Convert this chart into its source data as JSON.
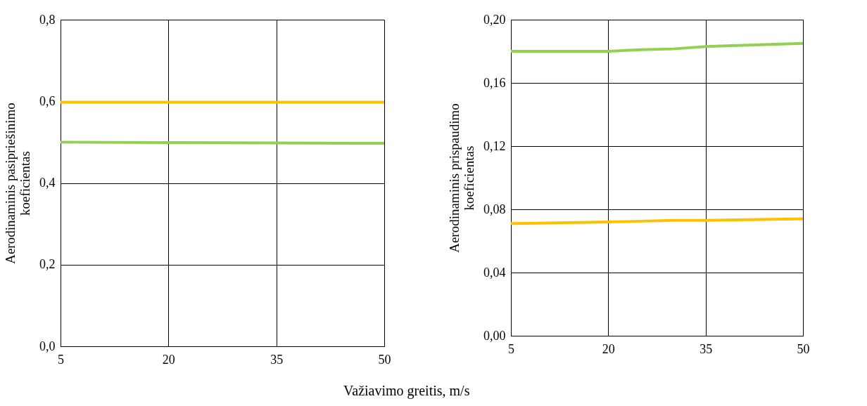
{
  "chart_data": [
    {
      "type": "line",
      "xlabel": "Važiavimo greitis, m/s",
      "ylabel": "Aerodinaminis pasipriešinimo\nkoeficientas",
      "x": [
        5,
        20,
        35,
        50
      ],
      "series": [
        {
          "color": "#ffc000",
          "values": [
            0.598,
            0.598,
            0.598,
            0.598
          ]
        },
        {
          "color": "#92d050",
          "values": [
            0.5,
            0.499,
            0.498,
            0.497
          ]
        }
      ],
      "xlim": [
        5,
        50
      ],
      "xticks": [
        5,
        20,
        35,
        50
      ],
      "ylim": [
        0,
        0.8
      ],
      "yticks": [
        {
          "value": 0,
          "label": "0,0"
        },
        {
          "value": 0.2,
          "label": "0,2"
        },
        {
          "value": 0.4,
          "label": "0,4"
        },
        {
          "value": 0.6,
          "label": "0,6"
        },
        {
          "value": 0.8,
          "label": "0,8"
        }
      ],
      "grid": true,
      "legend": false,
      "marker": "none",
      "line_style": "solid"
    },
    {
      "type": "line",
      "ylabel": "Aerodinaminis prispaudimo\nkoeficientas",
      "x": [
        5,
        20,
        25,
        30,
        35,
        50
      ],
      "series": [
        {
          "color": "#92d050",
          "values": [
            0.18,
            0.18,
            0.181,
            0.1815,
            0.183,
            0.185
          ]
        },
        {
          "color": "#ffc000",
          "values": [
            0.071,
            0.072,
            0.0725,
            0.073,
            0.073,
            0.074
          ]
        }
      ],
      "xlim": [
        5,
        50
      ],
      "xticks": [
        5,
        20,
        35,
        50
      ],
      "ylim": [
        0,
        0.2
      ],
      "yticks": [
        {
          "value": 0,
          "label": "0,00"
        },
        {
          "value": 0.04,
          "label": "0,04"
        },
        {
          "value": 0.08,
          "label": "0,08"
        },
        {
          "value": 0.12,
          "label": "0,12"
        },
        {
          "value": 0.16,
          "label": "0,16"
        },
        {
          "value": 0.2,
          "label": "0,20"
        }
      ],
      "grid": true,
      "legend": false,
      "marker": "none",
      "line_style": "solid"
    }
  ]
}
